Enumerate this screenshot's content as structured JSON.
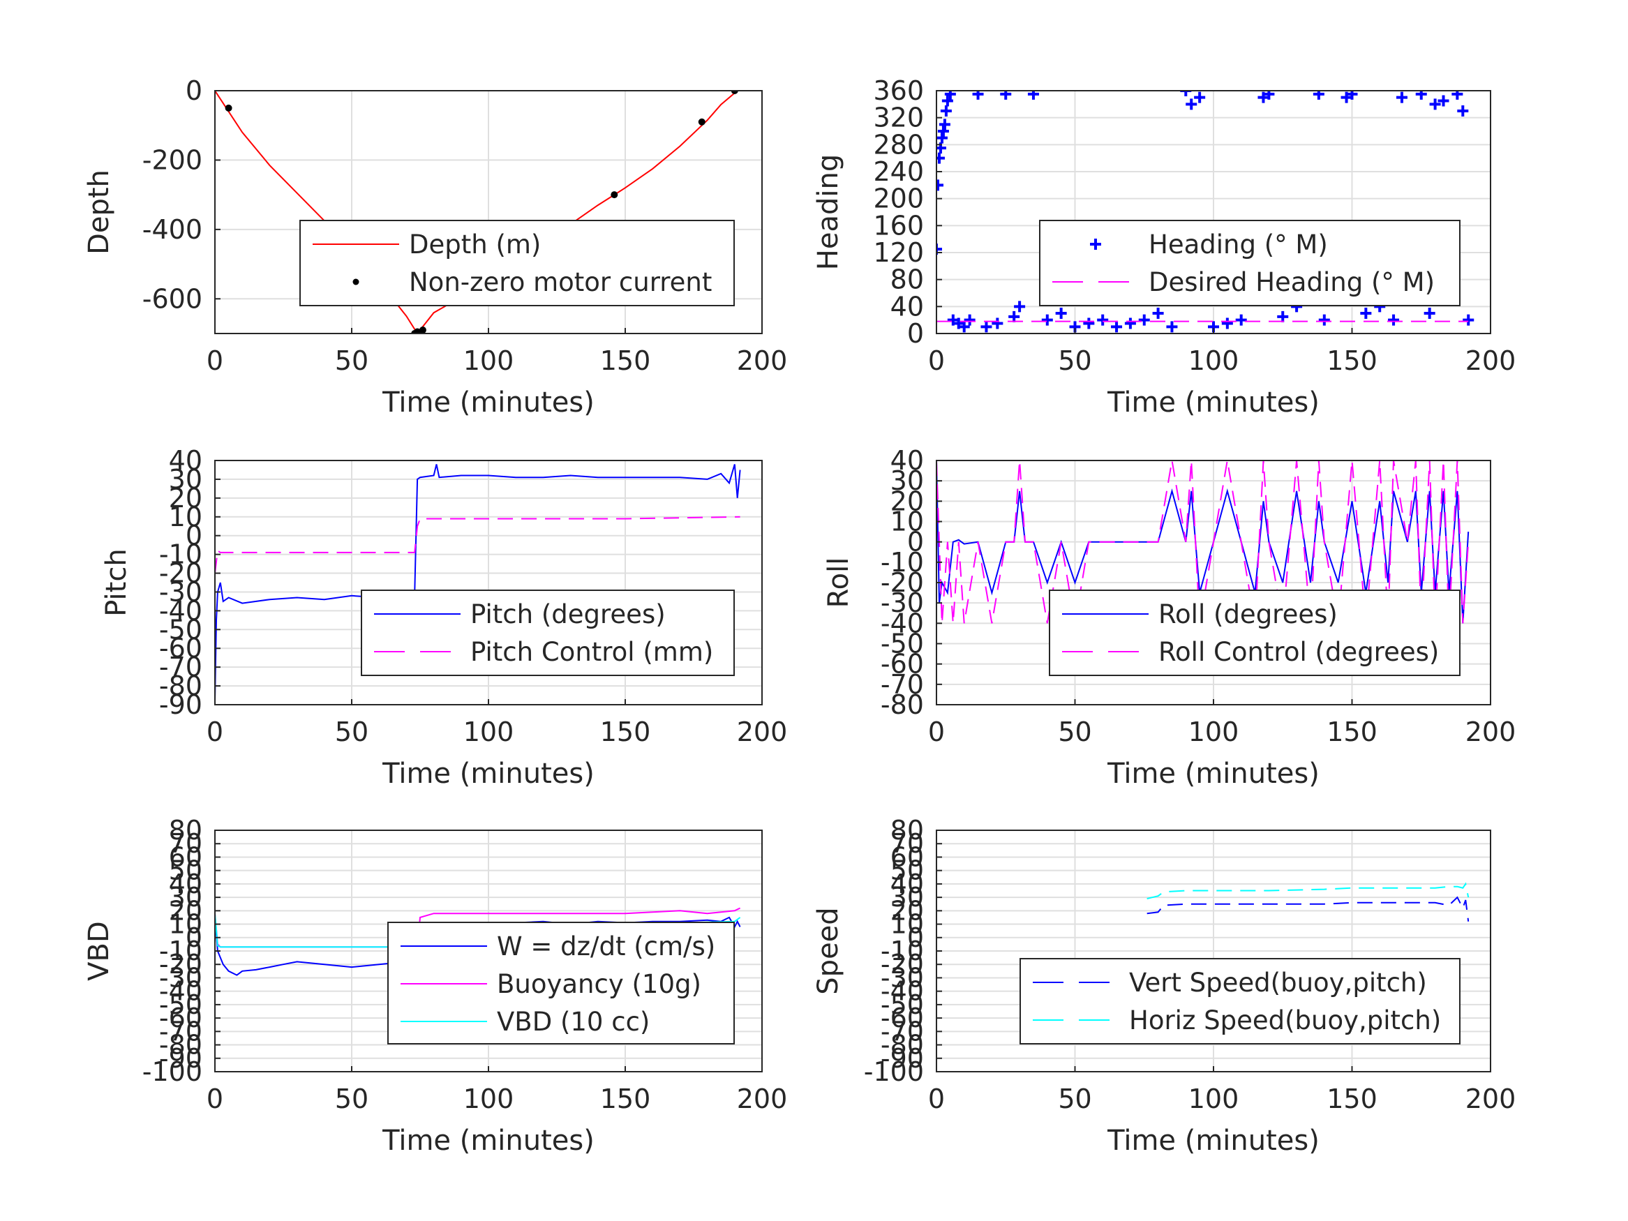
{
  "chart_data": [
    {
      "type": "line",
      "ylabel": "Depth",
      "xlabel": "Time (minutes)",
      "xlim": [
        0,
        200
      ],
      "ylim": [
        -700,
        0
      ],
      "x_ticks": [
        0,
        50,
        100,
        150,
        200
      ],
      "y_ticks": [
        -600,
        -400,
        -200,
        0
      ],
      "grid": true,
      "legend_placement": "center",
      "series": [
        {
          "name": "Depth (m)",
          "style": "solid",
          "color": "#ff0000",
          "x": [
            0,
            10,
            20,
            30,
            40,
            50,
            60,
            70,
            74,
            80,
            90,
            100,
            110,
            120,
            130,
            140,
            150,
            160,
            170,
            180,
            185,
            191
          ],
          "y": [
            0,
            -120,
            -215,
            -295,
            -375,
            -460,
            -550,
            -650,
            -700,
            -640,
            -595,
            -555,
            -510,
            -450,
            -385,
            -330,
            -280,
            -225,
            -160,
            -85,
            -40,
            0
          ]
        },
        {
          "name": "Non-zero motor current",
          "style": "markers",
          "color": "#000000",
          "x": [
            5,
            52,
            73,
            74,
            76,
            146,
            178,
            190
          ],
          "y": [
            -50,
            -550,
            -700,
            -695,
            -690,
            -300,
            -90,
            0
          ]
        }
      ]
    },
    {
      "type": "scatter",
      "ylabel": "Heading",
      "xlabel": "Time (minutes)",
      "xlim": [
        0,
        200
      ],
      "ylim": [
        0,
        360
      ],
      "x_ticks": [
        0,
        50,
        100,
        150,
        200
      ],
      "y_ticks": [
        0,
        40,
        80,
        120,
        160,
        200,
        240,
        280,
        320,
        360
      ],
      "grid": true,
      "legend_placement": "center-right",
      "series": [
        {
          "name": "Heading (° M)",
          "style": "plus-markers",
          "color": "#0000ff",
          "x": [
            0,
            0.5,
            1,
            1.5,
            2,
            2.5,
            3,
            3.5,
            4,
            5,
            6,
            8,
            10,
            12,
            15,
            18,
            22,
            25,
            28,
            30,
            35,
            40,
            45,
            50,
            55,
            60,
            65,
            70,
            75,
            80,
            85,
            88,
            90,
            92,
            95,
            100,
            105,
            110,
            115,
            118,
            120,
            125,
            130,
            135,
            138,
            140,
            145,
            148,
            150,
            155,
            160,
            165,
            168,
            170,
            175,
            178,
            180,
            183,
            185,
            188,
            190,
            192
          ],
          "y": [
            125,
            220,
            260,
            275,
            290,
            300,
            310,
            330,
            345,
            355,
            20,
            15,
            10,
            20,
            355,
            10,
            15,
            355,
            25,
            40,
            355,
            20,
            30,
            10,
            15,
            20,
            10,
            15,
            20,
            30,
            10,
            60,
            360,
            340,
            350,
            10,
            15,
            20,
            70,
            350,
            355,
            25,
            40,
            60,
            355,
            20,
            50,
            350,
            355,
            30,
            40,
            20,
            350,
            70,
            355,
            30,
            340,
            345,
            60,
            355,
            330,
            20
          ]
        },
        {
          "name": "Desired Heading (° M)",
          "style": "dashed",
          "color": "#ff00ff",
          "x": [
            0,
            192
          ],
          "y": [
            18,
            18
          ]
        }
      ]
    },
    {
      "type": "line",
      "ylabel": "Pitch",
      "xlabel": "Time (minutes)",
      "xlim": [
        0,
        200
      ],
      "ylim": [
        -90,
        40
      ],
      "x_ticks": [
        0,
        50,
        100,
        150,
        200
      ],
      "y_ticks": [
        -90,
        -80,
        -70,
        -60,
        -50,
        -40,
        -30,
        -20,
        -10,
        0,
        10,
        20,
        30,
        40
      ],
      "grid": true,
      "legend_placement": "center-right",
      "series": [
        {
          "name": "Pitch (degrees)",
          "style": "solid",
          "color": "#0000ff",
          "x": [
            0,
            0.5,
            1,
            2,
            3,
            5,
            10,
            20,
            30,
            40,
            50,
            60,
            70,
            73,
            74,
            75,
            80,
            81,
            82,
            90,
            100,
            110,
            120,
            130,
            140,
            150,
            160,
            170,
            180,
            185,
            188,
            190,
            191,
            192
          ],
          "y": [
            -88,
            -45,
            -30,
            -25,
            -35,
            -33,
            -36,
            -34,
            -33,
            -34,
            -32,
            -33,
            -32,
            -31,
            30,
            31,
            32,
            38,
            31,
            32,
            32,
            31,
            31,
            32,
            31,
            31,
            31,
            31,
            30,
            33,
            28,
            38,
            20,
            35
          ]
        },
        {
          "name": "Pitch Control (mm)",
          "style": "dashed",
          "color": "#ff00ff",
          "x": [
            0,
            1,
            2,
            5,
            73,
            74,
            75,
            100,
            150,
            192
          ],
          "y": [
            -20,
            -8,
            -9,
            -9,
            -9,
            5,
            9,
            9,
            9,
            10
          ]
        }
      ]
    },
    {
      "type": "line",
      "ylabel": "Roll",
      "xlabel": "Time (minutes)",
      "xlim": [
        0,
        200
      ],
      "ylim": [
        -80,
        40
      ],
      "x_ticks": [
        0,
        50,
        100,
        150,
        200
      ],
      "y_ticks": [
        -80,
        -70,
        -60,
        -50,
        -40,
        -30,
        -20,
        -10,
        0,
        10,
        20,
        30,
        40
      ],
      "grid": true,
      "legend_placement": "center-right",
      "series": [
        {
          "name": "Roll (degrees)",
          "style": "solid",
          "color": "#0000ff",
          "x": [
            0,
            1,
            2,
            4,
            6,
            8,
            10,
            15,
            20,
            25,
            28,
            30,
            32,
            35,
            40,
            45,
            50,
            55,
            60,
            65,
            70,
            75,
            80,
            85,
            90,
            92,
            95,
            100,
            105,
            110,
            115,
            118,
            120,
            125,
            130,
            135,
            138,
            140,
            145,
            150,
            155,
            160,
            163,
            165,
            170,
            173,
            175,
            178,
            180,
            183,
            185,
            188,
            190,
            192
          ],
          "y": [
            40,
            -30,
            -20,
            -25,
            0,
            1,
            -1,
            0,
            -25,
            0,
            0,
            25,
            0,
            0,
            -20,
            0,
            -20,
            0,
            0,
            0,
            0,
            0,
            0,
            25,
            0,
            25,
            -25,
            0,
            25,
            0,
            -25,
            20,
            0,
            -20,
            25,
            -20,
            20,
            0,
            -20,
            20,
            -25,
            20,
            -20,
            25,
            0,
            25,
            -25,
            25,
            -25,
            25,
            -25,
            25,
            -40,
            5
          ]
        },
        {
          "name": "Roll Control (degrees)",
          "style": "dashed",
          "color": "#ff00ff",
          "x": [
            0,
            2,
            4,
            6,
            8,
            10,
            15,
            20,
            25,
            28,
            30,
            32,
            35,
            40,
            45,
            50,
            55,
            60,
            65,
            70,
            75,
            80,
            85,
            90,
            92,
            95,
            100,
            105,
            110,
            115,
            118,
            120,
            125,
            130,
            135,
            138,
            140,
            145,
            150,
            155,
            160,
            163,
            165,
            170,
            173,
            175,
            178,
            180,
            183,
            185,
            188,
            190,
            192
          ],
          "y": [
            40,
            -40,
            0,
            -40,
            0,
            -40,
            0,
            -40,
            0,
            0,
            40,
            0,
            0,
            -40,
            0,
            -40,
            0,
            0,
            0,
            0,
            0,
            0,
            40,
            0,
            40,
            -40,
            0,
            40,
            0,
            -40,
            40,
            0,
            -40,
            40,
            -40,
            40,
            0,
            -40,
            40,
            -40,
            40,
            -40,
            40,
            0,
            40,
            -40,
            40,
            -40,
            40,
            -40,
            40,
            -40,
            0
          ]
        }
      ]
    },
    {
      "type": "line",
      "ylabel": "VBD",
      "xlabel": "Time (minutes)",
      "xlim": [
        0,
        200
      ],
      "ylim": [
        -100,
        80
      ],
      "x_ticks": [
        0,
        50,
        100,
        150,
        200
      ],
      "y_ticks": [
        -100,
        -90,
        -80,
        -70,
        -60,
        -50,
        -40,
        -30,
        -20,
        -10,
        0,
        10,
        20,
        30,
        40,
        50,
        60,
        70,
        80
      ],
      "grid": true,
      "legend_placement": "center-right",
      "series": [
        {
          "name": "W = dz/dt (cm/s)",
          "style": "solid",
          "color": "#0000ff",
          "x": [
            0,
            1,
            3,
            5,
            8,
            10,
            15,
            20,
            25,
            30,
            40,
            50,
            60,
            70,
            72,
            74,
            75,
            80,
            90,
            100,
            110,
            120,
            130,
            140,
            150,
            160,
            170,
            180,
            185,
            188,
            190,
            191,
            192
          ],
          "y": [
            15,
            -10,
            -20,
            -25,
            -28,
            -25,
            -24,
            -22,
            -20,
            -18,
            -20,
            -22,
            -20,
            -18,
            -18,
            -12,
            5,
            8,
            10,
            10,
            11,
            12,
            10,
            12,
            11,
            12,
            12,
            13,
            12,
            15,
            8,
            12,
            8
          ]
        },
        {
          "name": "Buoyancy (10g)",
          "style": "solid",
          "color": "#ff00ff",
          "x": [
            0,
            1,
            2,
            74,
            75,
            80,
            100,
            120,
            150,
            170,
            180,
            190,
            192
          ],
          "y": [
            18,
            -5,
            -7,
            -7,
            15,
            18,
            18,
            18,
            18,
            20,
            18,
            20,
            22
          ]
        },
        {
          "name": "VBD (10 cc)",
          "style": "solid",
          "color": "#00ffff",
          "x": [
            0,
            1,
            2,
            74,
            75,
            100,
            150,
            190,
            192
          ],
          "y": [
            18,
            -6,
            -7,
            -7,
            10,
            10,
            10,
            12,
            15
          ]
        }
      ]
    },
    {
      "type": "line",
      "ylabel": "Speed",
      "xlabel": "Time (minutes)",
      "xlim": [
        0,
        200
      ],
      "ylim": [
        -100,
        80
      ],
      "x_ticks": [
        0,
        50,
        100,
        150,
        200
      ],
      "y_ticks": [
        -100,
        -90,
        -80,
        -70,
        -60,
        -50,
        -40,
        -30,
        -20,
        -10,
        0,
        10,
        20,
        30,
        40,
        50,
        60,
        70,
        80
      ],
      "grid": true,
      "legend_placement": "bottom-right",
      "series": [
        {
          "name": "Vert Speed(buoy,pitch)",
          "style": "dashed",
          "color": "#0000ff",
          "x": [
            76,
            80,
            82,
            90,
            100,
            120,
            140,
            150,
            170,
            180,
            185,
            188,
            190,
            191,
            192
          ],
          "y": [
            18,
            19,
            24,
            25,
            25,
            25,
            25,
            26,
            26,
            26,
            24,
            30,
            22,
            28,
            12
          ]
        },
        {
          "name": "Horiz Speed(buoy,pitch)",
          "style": "dashed",
          "color": "#00ffff",
          "x": [
            76,
            80,
            82,
            90,
            100,
            120,
            140,
            150,
            170,
            180,
            185,
            188,
            190,
            191,
            192
          ],
          "y": [
            29,
            31,
            34,
            35,
            35,
            35,
            36,
            37,
            37,
            37,
            38,
            38,
            37,
            40,
            30
          ]
        }
      ]
    }
  ]
}
